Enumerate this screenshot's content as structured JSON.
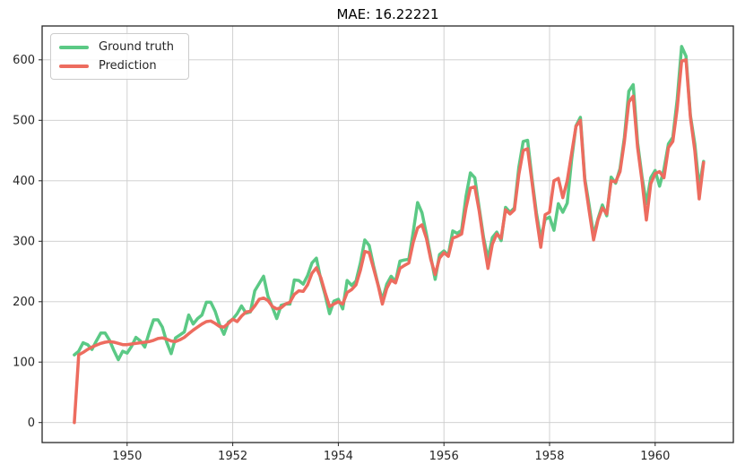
{
  "figure": {
    "title": "MAE: 16.22221"
  },
  "legend": {
    "items": [
      {
        "label": "Ground truth",
        "color": "#5BC985"
      },
      {
        "label": "Prediction",
        "color": "#ED6C5F"
      }
    ]
  },
  "chart_data": {
    "type": "line",
    "title": "MAE: 16.22221",
    "mae": 16.22221,
    "xlabel": "",
    "ylabel": "",
    "x_unit": "year (monthly samples)",
    "x_start": 1949.0,
    "x_step": 0.0833333,
    "xlim": [
      1948.39,
      1961.48
    ],
    "ylim": [
      -33,
      656
    ],
    "xticks": [
      1950,
      1952,
      1954,
      1956,
      1958,
      1960
    ],
    "yticks": [
      0,
      100,
      200,
      300,
      400,
      500,
      600
    ],
    "grid": true,
    "grid_color": "#cccccc",
    "legend_position": "upper-left",
    "series": [
      {
        "name": "Ground truth",
        "color": "#5BC985",
        "linewidth": 3.5,
        "values": [
          112,
          118,
          132,
          129,
          121,
          135,
          148,
          148,
          136,
          119,
          104,
          118,
          115,
          126,
          141,
          135,
          125,
          149,
          170,
          170,
          158,
          133,
          114,
          140,
          145,
          150,
          178,
          163,
          172,
          178,
          199,
          199,
          184,
          162,
          146,
          166,
          171,
          180,
          193,
          181,
          183,
          218,
          230,
          242,
          209,
          191,
          172,
          194,
          196,
          196,
          236,
          235,
          229,
          243,
          264,
          272,
          237,
          211,
          180,
          201,
          204,
          188,
          235,
          227,
          234,
          264,
          302,
          293,
          259,
          229,
          203,
          229,
          242,
          233,
          267,
          269,
          270,
          315,
          364,
          347,
          312,
          274,
          237,
          278,
          284,
          277,
          317,
          313,
          318,
          374,
          413,
          405,
          355,
          306,
          271,
          306,
          315,
          301,
          356,
          348,
          355,
          422,
          465,
          467,
          404,
          347,
          305,
          336,
          340,
          318,
          362,
          348,
          363,
          435,
          491,
          505,
          404,
          359,
          310,
          337,
          360,
          342,
          406,
          396,
          420,
          472,
          548,
          559,
          463,
          407,
          362,
          405,
          417,
          391,
          419,
          461,
          472,
          535,
          622,
          606,
          508,
          461,
          390,
          432
        ]
      },
      {
        "name": "Prediction",
        "color": "#ED6C5F",
        "linewidth": 3.5,
        "values": [
          0,
          112,
          116,
          121,
          125,
          128,
          131,
          133,
          134,
          133,
          131,
          129,
          129,
          130,
          131,
          132,
          133,
          134,
          136,
          139,
          140,
          138,
          135,
          134,
          137,
          141,
          147,
          153,
          158,
          163,
          167,
          168,
          164,
          159,
          158,
          164,
          171,
          167,
          176,
          183,
          184,
          193,
          204,
          206,
          202,
          192,
          188,
          190,
          196,
          199,
          212,
          218,
          217,
          228,
          247,
          256,
          240,
          215,
          192,
          196,
          200,
          196,
          215,
          220,
          228,
          252,
          283,
          281,
          255,
          228,
          196,
          222,
          236,
          231,
          255,
          260,
          264,
          298,
          322,
          327,
          305,
          270,
          245,
          272,
          281,
          275,
          305,
          308,
          312,
          355,
          388,
          390,
          350,
          300,
          255,
          295,
          312,
          305,
          352,
          345,
          352,
          410,
          450,
          453,
          398,
          340,
          290,
          344,
          348,
          400,
          404,
          372,
          400,
          445,
          490,
          500,
          400,
          350,
          302,
          335,
          355,
          345,
          400,
          398,
          415,
          465,
          530,
          540,
          455,
          400,
          335,
          395,
          412,
          415,
          405,
          455,
          465,
          520,
          598,
          600,
          505,
          450,
          370,
          430
        ]
      }
    ]
  }
}
